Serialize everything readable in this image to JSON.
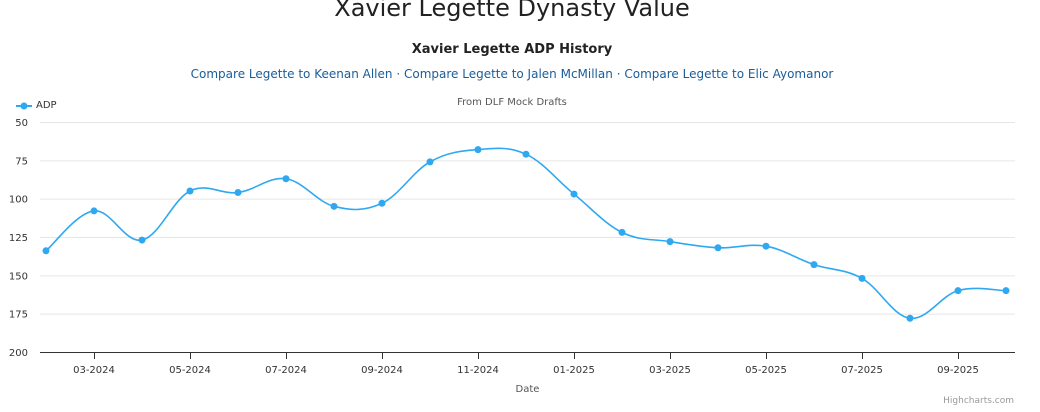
{
  "page": {
    "title": "Xavier Legette Dynasty Value",
    "links": [
      "Compare Legette to Keenan Allen",
      "Compare Legette to Jalen McMillan",
      "Compare Legette to Elic Ayomanor"
    ],
    "link_separator": "·",
    "credits": "Highcharts.com"
  },
  "colors": {
    "series": "#2fa8f2",
    "axis": "#333333",
    "grid": "#e6e6e6"
  },
  "chart_data": {
    "type": "line",
    "title": "Xavier Legette ADP History",
    "subtitle": "From DLF Mock Drafts",
    "xlabel": "Date",
    "ylabel": "",
    "legend_position": "top-left",
    "grid": true,
    "y_reversed": true,
    "ylim": [
      50,
      200
    ],
    "yticks": [
      50,
      75,
      100,
      125,
      150,
      175,
      200
    ],
    "xticks": [
      "03-2024",
      "05-2024",
      "07-2024",
      "09-2024",
      "11-2024",
      "01-2025",
      "03-2025",
      "05-2025",
      "07-2025",
      "09-2025"
    ],
    "series": [
      {
        "name": "ADP",
        "points": [
          {
            "x": "2024-02",
            "y": 134
          },
          {
            "x": "2024-03",
            "y": 108
          },
          {
            "x": "2024-04",
            "y": 127
          },
          {
            "x": "2024-05",
            "y": 95
          },
          {
            "x": "2024-06",
            "y": 96
          },
          {
            "x": "2024-07",
            "y": 87
          },
          {
            "x": "2024-08",
            "y": 105
          },
          {
            "x": "2024-09",
            "y": 103
          },
          {
            "x": "2024-10",
            "y": 76
          },
          {
            "x": "2024-11",
            "y": 68
          },
          {
            "x": "2024-12",
            "y": 71
          },
          {
            "x": "2025-01",
            "y": 97
          },
          {
            "x": "2025-02",
            "y": 122
          },
          {
            "x": "2025-03",
            "y": 128
          },
          {
            "x": "2025-04",
            "y": 132
          },
          {
            "x": "2025-05",
            "y": 131
          },
          {
            "x": "2025-06",
            "y": 143
          },
          {
            "x": "2025-07",
            "y": 152
          },
          {
            "x": "2025-08",
            "y": 178
          },
          {
            "x": "2025-09",
            "y": 160
          },
          {
            "x": "2025-10",
            "y": 160
          }
        ]
      }
    ]
  }
}
